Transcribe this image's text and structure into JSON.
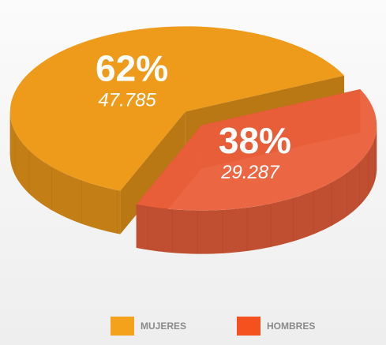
{
  "chart_data": {
    "type": "pie",
    "categories": [
      "MUJERES",
      "HOMBRES"
    ],
    "values": [
      62,
      38
    ],
    "value_labels": [
      "62%",
      "38%"
    ],
    "counts": [
      47785,
      29287
    ],
    "count_labels": [
      "47.785",
      "29.287"
    ],
    "colors": [
      "#ee9a1a",
      "#ea5f3a"
    ],
    "legend_colors": [
      "#f4a21c",
      "#f4511e"
    ],
    "legend": "bottom"
  }
}
